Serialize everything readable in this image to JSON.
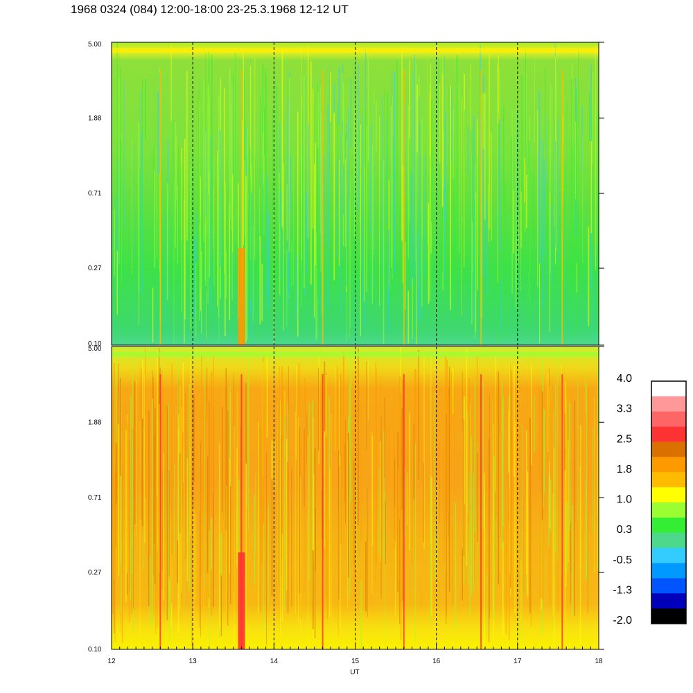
{
  "title": "1968 0324 (084) 12:00-18:00 23-25.3.1968  12-12 UT",
  "chart_data": [
    {
      "type": "heatmap",
      "panel": "top",
      "x": [
        12,
        18
      ],
      "xticks": [
        12,
        13,
        14,
        15,
        16,
        17,
        18
      ],
      "yticks": [
        "0.10",
        "0.27",
        "0.71",
        "1.88",
        "5.00"
      ],
      "y_scale": "log",
      "ylim": [
        0.1,
        5.0
      ],
      "grid_x": true,
      "dominant_levels": "0.3 to 1.0",
      "bright_streaks_ut": [
        12.6,
        13.6,
        14.6,
        15.6,
        16.55,
        17.55
      ]
    },
    {
      "type": "heatmap",
      "panel": "bottom",
      "x": [
        12,
        18
      ],
      "xticks": [
        "12",
        "13",
        "14",
        "15",
        "16",
        "17",
        "18"
      ],
      "yticks": [
        "0.10",
        "0.27",
        "0.71",
        "1.88",
        "5.00"
      ],
      "xlabel": "UT",
      "y_scale": "log",
      "ylim": [
        0.1,
        5.0
      ],
      "grid_x": true,
      "dominant_levels": "1.0 to 2.5",
      "bright_streaks_ut": [
        12.6,
        13.6,
        14.6,
        15.6,
        16.55,
        17.55
      ]
    }
  ],
  "colorbar": {
    "labels": [
      "4.0",
      "3.3",
      "2.5",
      "1.8",
      "1.0",
      "0.3",
      "-0.5",
      "-1.3",
      "-2.0"
    ],
    "colors": [
      "#ffffff",
      "#ff9999",
      "#ff6666",
      "#ff3333",
      "#d97000",
      "#ff9900",
      "#ffbb00",
      "#ffff00",
      "#99ff33",
      "#33ee33",
      "#4dd98c",
      "#33ccff",
      "#0099ff",
      "#0055ff",
      "#0000bb",
      "#000000"
    ]
  }
}
